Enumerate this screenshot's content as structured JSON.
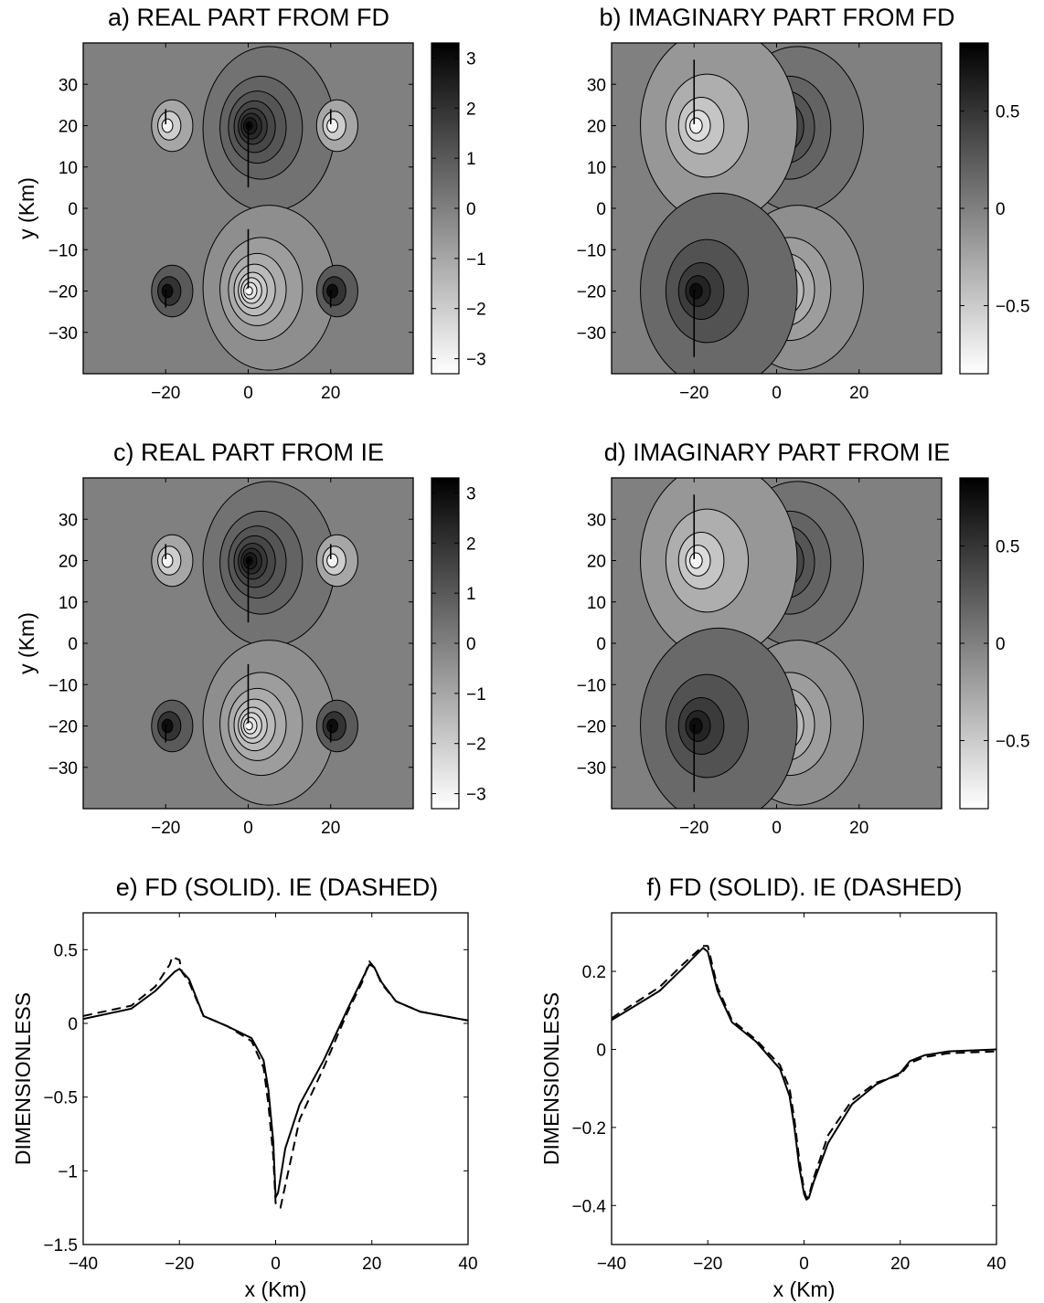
{
  "chart_data": [
    {
      "id": "a",
      "type": "heatmap",
      "title": "a) REAL PART FROM FD",
      "xlabel": "",
      "ylabel": "y (Km)",
      "xlim": [
        -40,
        40
      ],
      "ylim": [
        -40,
        40
      ],
      "xticks": [
        "−20",
        "0",
        "20"
      ],
      "xtick_values": [
        -20,
        0,
        20
      ],
      "yticks": [
        "30",
        "20",
        "10",
        "0",
        "−10",
        "−20",
        "−30"
      ],
      "ytick_values": [
        30,
        20,
        10,
        0,
        -10,
        -20,
        -30
      ],
      "colorbar": {
        "range": [
          -3.3,
          3.3
        ],
        "ticks": [
          "3",
          "2",
          "1",
          "0",
          "−1",
          "−2",
          "−3"
        ],
        "tick_values": [
          3,
          2,
          1,
          0,
          -1,
          -2,
          -3
        ]
      },
      "sources": [
        {
          "x": 0,
          "y": 20,
          "kind": "strong",
          "sign": 1
        },
        {
          "x": 0,
          "y": -20,
          "kind": "strong",
          "sign": -1
        },
        {
          "x": -20,
          "y": 20,
          "kind": "weak",
          "sign": -1
        },
        {
          "x": 20,
          "y": 20,
          "kind": "weak",
          "sign": -1
        },
        {
          "x": -20,
          "y": -20,
          "kind": "weak",
          "sign": 1
        },
        {
          "x": 20,
          "y": -20,
          "kind": "weak",
          "sign": 1
        }
      ]
    },
    {
      "id": "b",
      "type": "heatmap",
      "title": "b) IMAGINARY PART FROM FD",
      "xlabel": "",
      "ylabel": "",
      "xlim": [
        -40,
        40
      ],
      "ylim": [
        -40,
        40
      ],
      "xticks": [
        "−20",
        "0",
        "20"
      ],
      "xtick_values": [
        -20,
        0,
        20
      ],
      "yticks": [
        "30",
        "20",
        "10",
        "0",
        "−10",
        "−20",
        "−30"
      ],
      "ytick_values": [
        30,
        20,
        10,
        0,
        -10,
        -20,
        -30
      ],
      "colorbar": {
        "range": [
          -0.85,
          0.85
        ],
        "ticks": [
          "0.5",
          "0",
          "−0.5"
        ],
        "tick_values": [
          0.5,
          0,
          -0.5
        ]
      },
      "sources": [
        {
          "x": 0,
          "y": 20,
          "kind": "strong",
          "sign": 1
        },
        {
          "x": 0,
          "y": -20,
          "kind": "strong",
          "sign": -1
        },
        {
          "x": -20,
          "y": 20,
          "kind": "medium",
          "sign": -1
        },
        {
          "x": -20,
          "y": -20,
          "kind": "medium",
          "sign": 1
        }
      ]
    },
    {
      "id": "c",
      "type": "heatmap",
      "title": "c) REAL PART FROM IE",
      "xlabel": "",
      "ylabel": "y (Km)",
      "xlim": [
        -40,
        40
      ],
      "ylim": [
        -40,
        40
      ],
      "xticks": [
        "−20",
        "0",
        "20"
      ],
      "xtick_values": [
        -20,
        0,
        20
      ],
      "yticks": [
        "30",
        "20",
        "10",
        "0",
        "−10",
        "−20",
        "−30"
      ],
      "ytick_values": [
        30,
        20,
        10,
        0,
        -10,
        -20,
        -30
      ],
      "colorbar": {
        "range": [
          -3.3,
          3.3
        ],
        "ticks": [
          "3",
          "2",
          "1",
          "0",
          "−1",
          "−2",
          "−3"
        ],
        "tick_values": [
          3,
          2,
          1,
          0,
          -1,
          -2,
          -3
        ]
      },
      "sources": [
        {
          "x": 0,
          "y": 20,
          "kind": "strong",
          "sign": 1
        },
        {
          "x": 0,
          "y": -20,
          "kind": "strong",
          "sign": -1
        },
        {
          "x": -20,
          "y": 20,
          "kind": "weak",
          "sign": -1
        },
        {
          "x": 20,
          "y": 20,
          "kind": "weak",
          "sign": -1
        },
        {
          "x": -20,
          "y": -20,
          "kind": "weak",
          "sign": 1
        },
        {
          "x": 20,
          "y": -20,
          "kind": "weak",
          "sign": 1
        }
      ]
    },
    {
      "id": "d",
      "type": "heatmap",
      "title": "d) IMAGINARY PART FROM IE",
      "xlabel": "",
      "ylabel": "",
      "xlim": [
        -40,
        40
      ],
      "ylim": [
        -40,
        40
      ],
      "xticks": [
        "−20",
        "0",
        "20"
      ],
      "xtick_values": [
        -20,
        0,
        20
      ],
      "yticks": [
        "30",
        "20",
        "10",
        "0",
        "−10",
        "−20",
        "−30"
      ],
      "ytick_values": [
        30,
        20,
        10,
        0,
        -10,
        -20,
        -30
      ],
      "colorbar": {
        "range": [
          -0.85,
          0.85
        ],
        "ticks": [
          "0.5",
          "0",
          "−0.5"
        ],
        "tick_values": [
          0.5,
          0,
          -0.5
        ]
      },
      "sources": [
        {
          "x": 0,
          "y": 20,
          "kind": "strong",
          "sign": 1
        },
        {
          "x": 0,
          "y": -20,
          "kind": "strong",
          "sign": -1
        },
        {
          "x": -20,
          "y": 20,
          "kind": "medium",
          "sign": -1
        },
        {
          "x": -20,
          "y": -20,
          "kind": "medium",
          "sign": 1
        }
      ]
    },
    {
      "id": "e",
      "type": "line",
      "title": "e) FD (SOLID). IE (DASHED)",
      "xlabel": "x (Km)",
      "ylabel": "DIMENSIONLESS",
      "xlim": [
        -40,
        40
      ],
      "ylim": [
        -1.5,
        0.75
      ],
      "xticks": [
        "−40",
        "−20",
        "0",
        "20",
        "40"
      ],
      "xtick_values": [
        -40,
        -20,
        0,
        20,
        40
      ],
      "yticks": [
        "0.5",
        "0",
        "−0.5",
        "−1",
        "−1.5"
      ],
      "ytick_values": [
        0.5,
        0,
        -0.5,
        -1,
        -1.5
      ],
      "series": [
        {
          "style": "solid",
          "x": [
            -40,
            -30,
            -25,
            -21,
            -20,
            -18,
            -15,
            -10,
            -5,
            -2.5,
            -1.5,
            -0.5,
            0,
            0.5,
            1,
            2,
            5,
            10,
            15,
            18,
            19.5,
            20.5,
            22,
            25,
            30,
            40
          ],
          "y": [
            0.03,
            0.1,
            0.22,
            0.35,
            0.37,
            0.3,
            0.05,
            -0.02,
            -0.1,
            -0.25,
            -0.45,
            -0.8,
            -1.18,
            -1.15,
            -1.05,
            -0.85,
            -0.55,
            -0.25,
            0.1,
            0.3,
            0.4,
            0.38,
            0.28,
            0.15,
            0.08,
            0.02
          ]
        },
        {
          "style": "dashed",
          "x": [
            -40,
            -30,
            -25,
            -22,
            -21.5,
            -20,
            -19.5,
            -18,
            -15,
            -10,
            -5,
            -2.5,
            -1.5,
            -0.5,
            0,
            1,
            2,
            5,
            10,
            15,
            18,
            19.5,
            20.5,
            22,
            25,
            30,
            40
          ],
          "y": [
            0.05,
            0.12,
            0.25,
            0.4,
            0.45,
            0.43,
            0.35,
            0.28,
            0.05,
            -0.02,
            -0.12,
            -0.3,
            -0.55,
            -0.9,
            -1.22,
            -1.25,
            -1.1,
            -0.65,
            -0.3,
            0.08,
            0.28,
            0.42,
            0.38,
            0.27,
            0.15,
            0.08,
            0.02
          ]
        }
      ]
    },
    {
      "id": "f",
      "type": "line",
      "title": "f) FD (SOLID). IE (DASHED)",
      "xlabel": "x (Km)",
      "ylabel": "DIMENSIONLESS",
      "xlim": [
        -40,
        40
      ],
      "ylim": [
        -0.5,
        0.35
      ],
      "xticks": [
        "−40",
        "−20",
        "0",
        "20",
        "40"
      ],
      "xtick_values": [
        -40,
        -20,
        0,
        20,
        40
      ],
      "yticks": [
        "0.2",
        "0",
        "−0.2",
        "−0.4"
      ],
      "ytick_values": [
        0.2,
        0,
        -0.2,
        -0.4
      ],
      "series": [
        {
          "style": "solid",
          "x": [
            -40,
            -30,
            -25,
            -21,
            -20,
            -18,
            -15,
            -10,
            -5,
            -3,
            -2,
            -1,
            0,
            0.5,
            1,
            2,
            5,
            10,
            15,
            20,
            22,
            25,
            30,
            40
          ],
          "y": [
            0.075,
            0.15,
            0.21,
            0.26,
            0.25,
            0.15,
            0.07,
            0.02,
            -0.05,
            -0.12,
            -0.2,
            -0.3,
            -0.37,
            -0.385,
            -0.38,
            -0.34,
            -0.24,
            -0.14,
            -0.09,
            -0.06,
            -0.03,
            -0.015,
            -0.005,
            0
          ]
        },
        {
          "style": "dashed",
          "x": [
            -40,
            -30,
            -25,
            -21,
            -20,
            -18,
            -15,
            -10,
            -5,
            -3,
            -2,
            -1,
            0,
            0.5,
            1,
            2,
            5,
            10,
            15,
            20,
            22,
            25,
            30,
            40
          ],
          "y": [
            0.08,
            0.16,
            0.22,
            0.265,
            0.265,
            0.16,
            0.075,
            0.025,
            -0.04,
            -0.1,
            -0.18,
            -0.28,
            -0.36,
            -0.38,
            -0.375,
            -0.33,
            -0.22,
            -0.13,
            -0.085,
            -0.065,
            -0.035,
            -0.02,
            -0.01,
            -0.005
          ]
        }
      ]
    }
  ]
}
